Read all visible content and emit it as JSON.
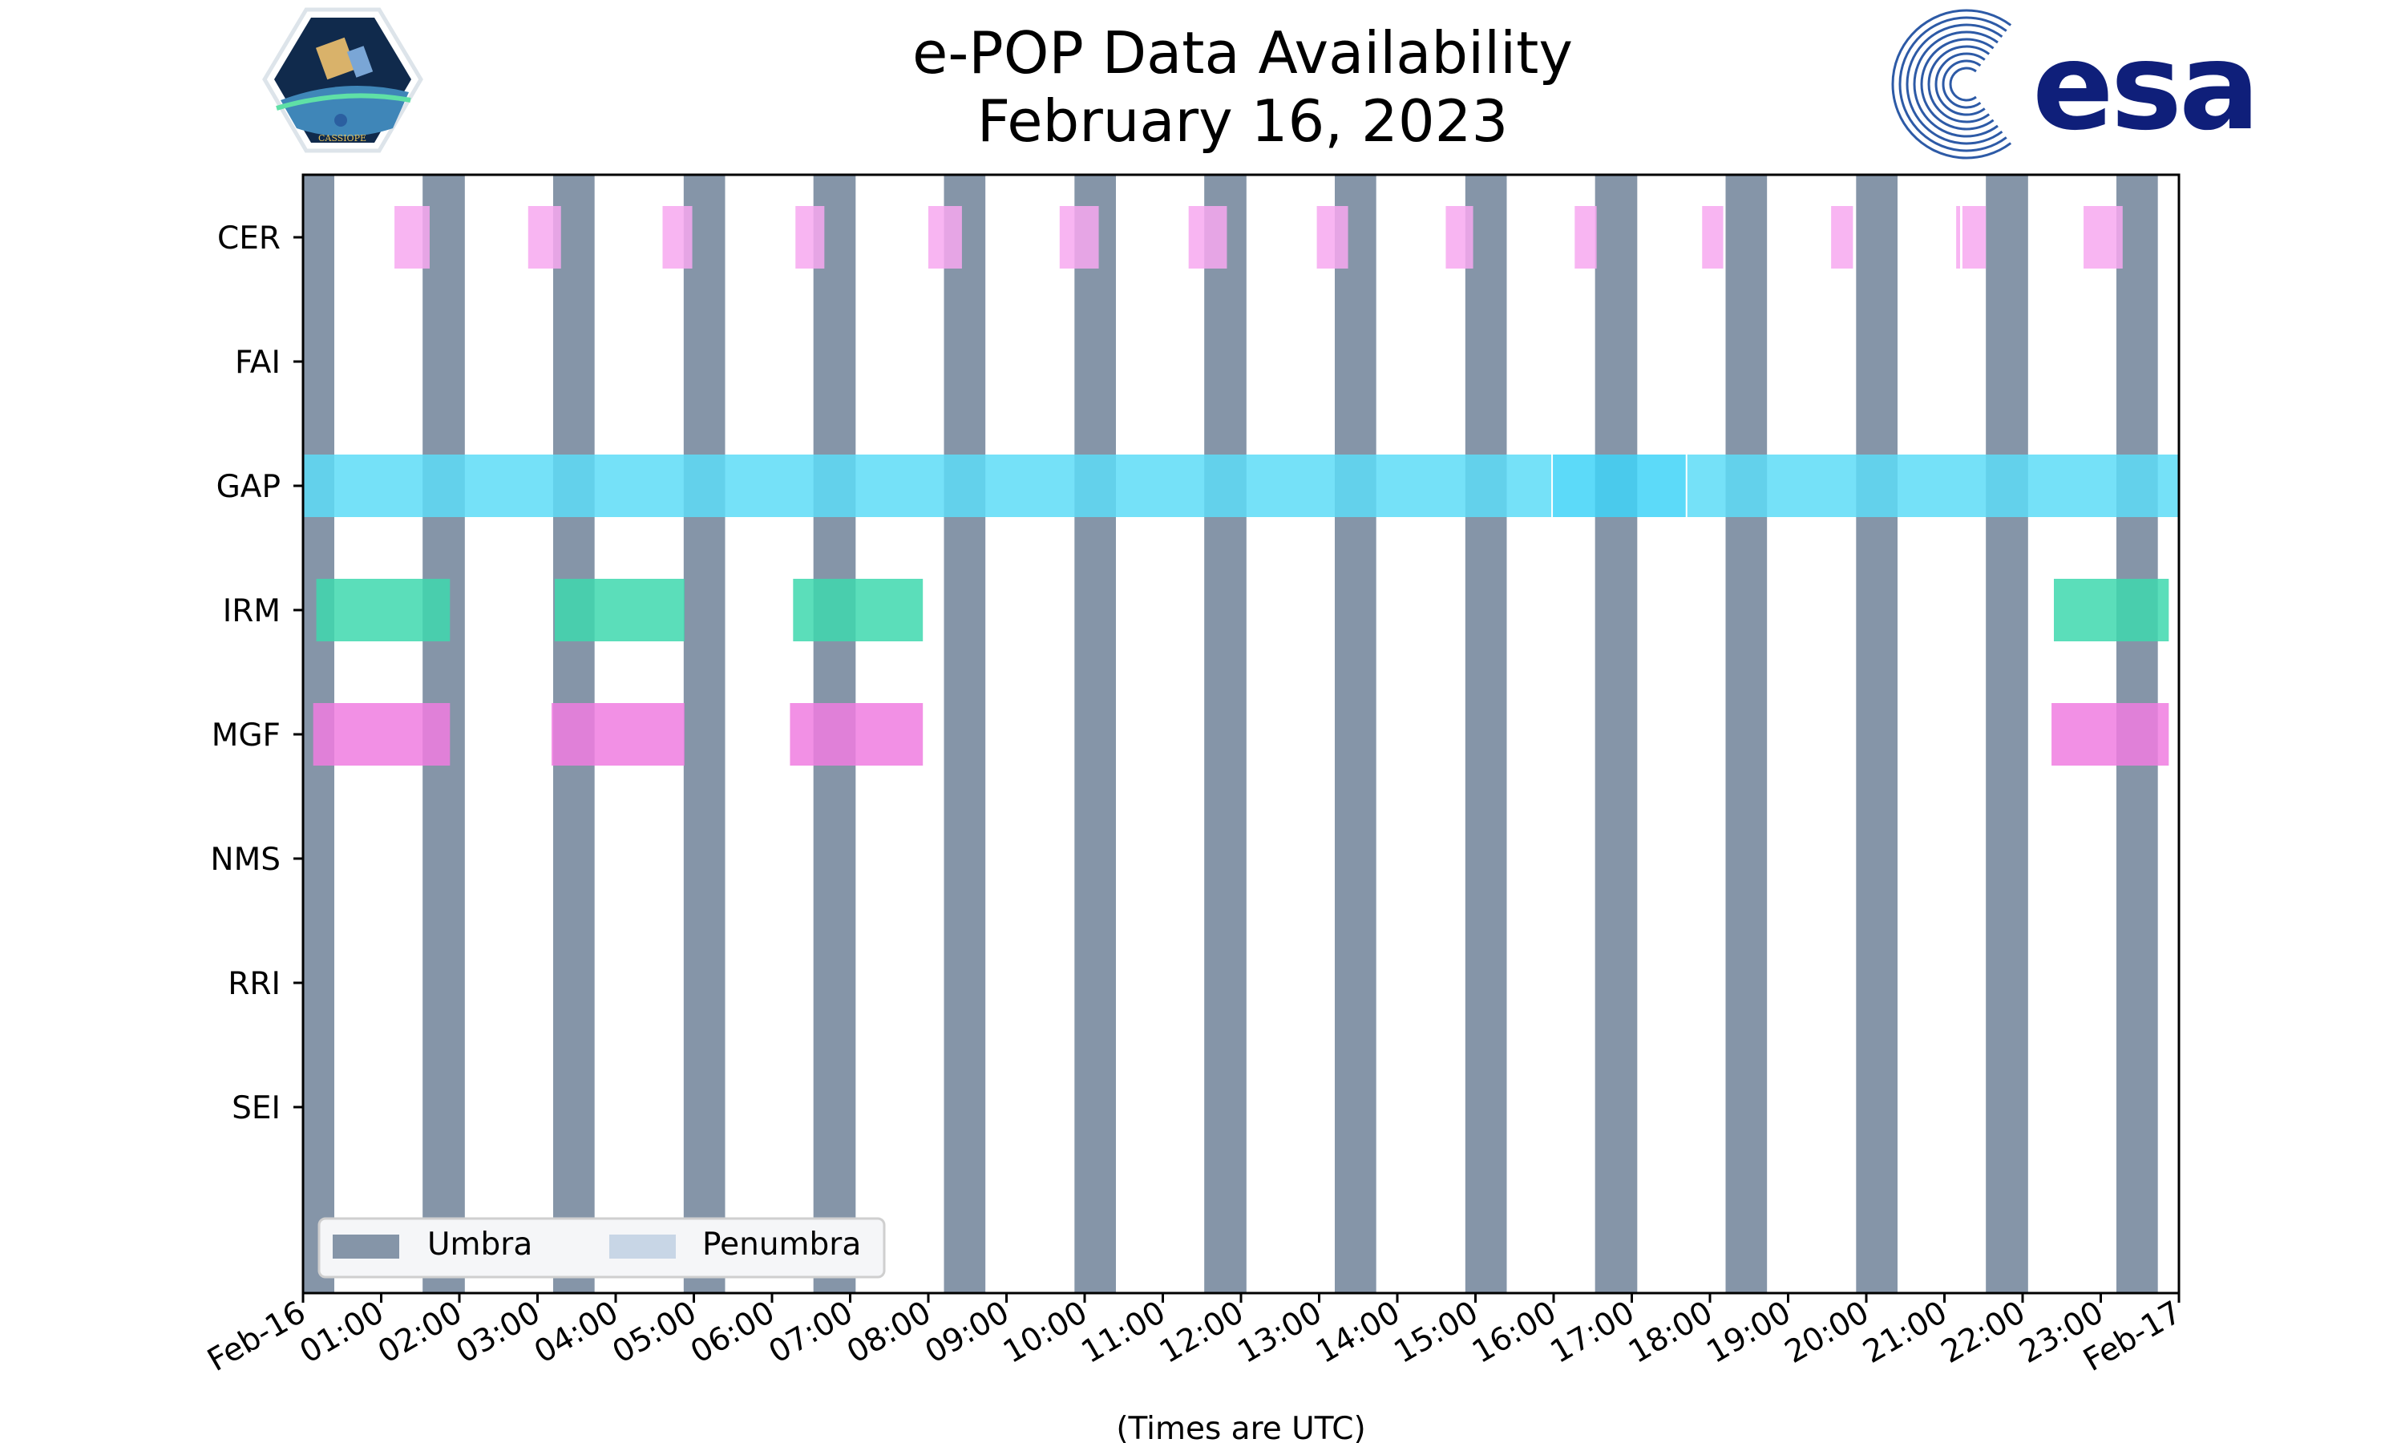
{
  "title": [
    "e-POP Data Availability",
    "February 16, 2023"
  ],
  "logos": {
    "cassiope": {
      "name": "cassiope-logo",
      "text": "CASSIOPE"
    },
    "esa": {
      "name": "esa-logo",
      "text": "esa"
    }
  },
  "chart_data": {
    "type": "timeline",
    "title": "e-POP Data Availability February 16, 2023",
    "xlabel": "(Times are UTC)",
    "xlim_hours": [
      0,
      24
    ],
    "x_ticks": [
      "Feb-16",
      "01:00",
      "02:00",
      "03:00",
      "04:00",
      "05:00",
      "06:00",
      "07:00",
      "08:00",
      "09:00",
      "10:00",
      "11:00",
      "12:00",
      "13:00",
      "14:00",
      "15:00",
      "16:00",
      "17:00",
      "18:00",
      "19:00",
      "20:00",
      "21:00",
      "22:00",
      "23:00",
      "Feb-17"
    ],
    "instruments": [
      "CER",
      "FAI",
      "GAP",
      "IRM",
      "MGF",
      "NMS",
      "RRI",
      "SEI"
    ],
    "umbra_intervals_hours": [
      [
        0.0,
        0.4
      ],
      [
        1.53,
        2.07
      ],
      [
        3.2,
        3.73
      ],
      [
        4.87,
        5.4
      ],
      [
        6.53,
        7.07
      ],
      [
        8.2,
        8.73
      ],
      [
        9.87,
        10.4
      ],
      [
        11.53,
        12.07
      ],
      [
        13.2,
        13.73
      ],
      [
        14.87,
        15.4
      ],
      [
        16.53,
        17.07
      ],
      [
        18.2,
        18.73
      ],
      [
        19.87,
        20.4
      ],
      [
        21.53,
        22.07
      ],
      [
        23.2,
        23.73
      ]
    ],
    "penumbra_intervals_hours": [],
    "availability": {
      "CER": [
        [
          1.17,
          1.62
        ],
        [
          2.88,
          3.3
        ],
        [
          4.6,
          4.98
        ],
        [
          6.3,
          6.67
        ],
        [
          8.0,
          8.43
        ],
        [
          9.68,
          10.18
        ],
        [
          11.33,
          11.82
        ],
        [
          12.97,
          13.37
        ],
        [
          14.62,
          14.97
        ],
        [
          16.27,
          16.55
        ],
        [
          17.9,
          18.17
        ],
        [
          19.55,
          19.83
        ],
        [
          21.15,
          21.2
        ],
        [
          21.23,
          21.53
        ],
        [
          22.78,
          23.28
        ]
      ],
      "FAI": [],
      "GAP": [
        [
          0.0,
          15.98
        ],
        [
          15.98,
          17.7
        ],
        [
          17.7,
          24.0
        ]
      ],
      "IRM": [
        [
          0.17,
          1.88
        ],
        [
          3.22,
          4.88
        ],
        [
          6.27,
          7.93
        ],
        [
          22.4,
          23.87
        ]
      ],
      "MGF": [
        [
          0.13,
          1.88
        ],
        [
          3.18,
          4.88
        ],
        [
          6.23,
          7.93
        ],
        [
          22.37,
          23.87
        ]
      ],
      "NMS": [],
      "RRI": [],
      "SEI": []
    },
    "colors": {
      "umbra": "#8595a8",
      "penumbra": "#c8d6e6",
      "CER": "#f7a8f0",
      "GAP": "#5ddcf7",
      "GAP_highlight": "#40d4f8",
      "IRM": "#3ed8ae",
      "MGF": "#f07ce0",
      "overlap_CER": "#e9a3e8",
      "overlap_GAP": "#4ccfee",
      "overlap_IRM": "#2bc9a0",
      "overlap_MGF": "#df6fd5"
    },
    "legend": {
      "position": "lower-left",
      "entries": [
        "Umbra",
        "Penumbra"
      ]
    }
  }
}
